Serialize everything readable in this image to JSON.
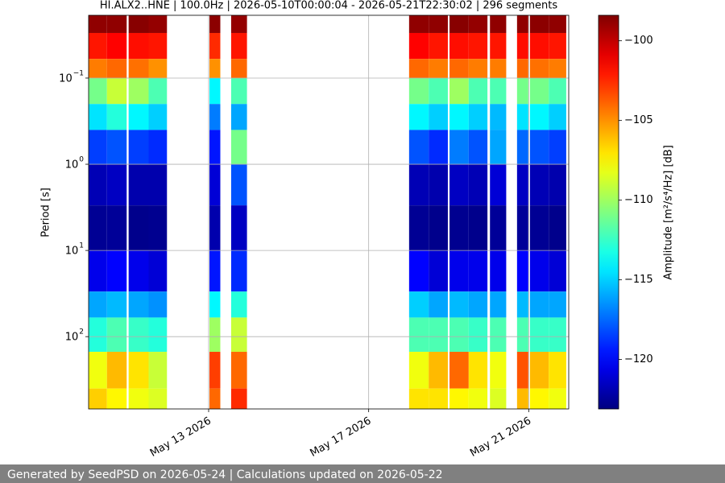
{
  "chart_data": {
    "type": "heatmap",
    "title": "HI.ALX2..HNE | 100.0Hz | 2026-05-10T00:00:04 - 2026-05-21T22:30:02 | 296 segments",
    "ylabel": "Period [s]",
    "colorbar_label": "Amplitude [m²/s⁴/Hz] [dB]",
    "xlim": [
      "2026-05-10",
      "2026-05-22"
    ],
    "xticks": [
      {
        "value": "2026-05-13",
        "label": "May 13 2026"
      },
      {
        "value": "2026-05-17",
        "label": "May 17 2026"
      },
      {
        "value": "2026-05-21",
        "label": "May 21 2026"
      }
    ],
    "ylim": [
      0.0187,
      690
    ],
    "y_scale": "log",
    "y_inverted": true,
    "yticks": [
      {
        "value": 0.1,
        "label": "10",
        "exponent": "−1"
      },
      {
        "value": 1,
        "label": "10",
        "exponent": "0"
      },
      {
        "value": 10,
        "label": "10",
        "exponent": "1"
      },
      {
        "value": 100,
        "label": "10",
        "exponent": "2"
      }
    ],
    "grid": true,
    "colormap": "jet",
    "clim": [
      -123.1,
      -98.4
    ],
    "cticks": [
      {
        "value": -100,
        "label": "−100"
      },
      {
        "value": -105,
        "label": "−105"
      },
      {
        "value": -110,
        "label": "−110"
      },
      {
        "value": -115,
        "label": "−115"
      },
      {
        "value": -120,
        "label": "−120"
      }
    ],
    "y_edges": [
      0.0187,
      0.03,
      0.06,
      0.1,
      0.2,
      0.4,
      1,
      3,
      10,
      30,
      60,
      150,
      400,
      690
    ],
    "segments": [
      {
        "start": "2026-05-10T00:00",
        "end": "2026-05-10T11:00",
        "values": [
          -98.8,
          -102,
          -104.5,
          -111,
          -114.5,
          -118.5,
          -121.8,
          -122.6,
          -120.5,
          -116,
          -113,
          -108,
          -106.5
        ]
      },
      {
        "start": "2026-05-10T11:00",
        "end": "2026-05-10T22:50",
        "values": [
          -98.8,
          -101.5,
          -104,
          -109,
          -113,
          -118,
          -121.5,
          -122.5,
          -120,
          -115.5,
          -112,
          -106,
          -107.5
        ]
      },
      {
        "start": "2026-05-11T00:00",
        "end": "2026-05-11T12:00",
        "values": [
          -98.6,
          -101.8,
          -104.2,
          -110,
          -114,
          -118.5,
          -122,
          -122.8,
          -120.5,
          -116,
          -112.5,
          -107,
          -108
        ]
      },
      {
        "start": "2026-05-11T12:00",
        "end": "2026-05-11T23:00",
        "values": [
          -98.9,
          -102,
          -105,
          -112,
          -115,
          -119,
          -122,
          -122.7,
          -121,
          -116.5,
          -113,
          -109,
          -108.5
        ]
      },
      {
        "start": "2026-05-13T00:30",
        "end": "2026-05-13T07:00",
        "values": [
          -98.7,
          -102.5,
          -105,
          -114,
          -117,
          -119.5,
          -121,
          -122,
          -119.5,
          -114,
          -110,
          -103,
          -104
        ]
      },
      {
        "start": "2026-05-13T13:30",
        "end": "2026-05-13T23:00",
        "values": [
          -98.9,
          -102,
          -104,
          -112,
          -116,
          -111,
          -118,
          -121.5,
          -119,
          -113,
          -109,
          -104,
          -102.5
        ]
      },
      {
        "start": "2026-05-18T00:15",
        "end": "2026-05-18T12:00",
        "values": [
          -98.8,
          -101.5,
          -104,
          -111,
          -114,
          -118,
          -121.8,
          -122.6,
          -120,
          -115,
          -112,
          -108,
          -107
        ]
      },
      {
        "start": "2026-05-18T12:00",
        "end": "2026-05-18T23:30",
        "values": [
          -98.8,
          -102,
          -104.5,
          -112,
          -115,
          -119,
          -122,
          -122.8,
          -121,
          -116,
          -112,
          -106,
          -107
        ]
      },
      {
        "start": "2026-05-19T00:30",
        "end": "2026-05-19T12:00",
        "values": [
          -98.6,
          -101.8,
          -104,
          -110,
          -114,
          -117,
          -121.5,
          -122.7,
          -120.5,
          -115.5,
          -112,
          -104,
          -107.5
        ]
      },
      {
        "start": "2026-05-19T12:00",
        "end": "2026-05-19T23:15",
        "values": [
          -98.9,
          -102,
          -104.5,
          -112,
          -115,
          -118,
          -121.8,
          -122.8,
          -120.5,
          -116,
          -112.5,
          -107,
          -108
        ]
      },
      {
        "start": "2026-05-20T00:45",
        "end": "2026-05-20T10:30",
        "values": [
          -98.8,
          -102,
          -104.5,
          -112,
          -115.5,
          -116,
          -121,
          -122.5,
          -120.5,
          -116,
          -112,
          -108,
          -108.5
        ]
      },
      {
        "start": "2026-05-20T17:00",
        "end": "2026-05-20T23:45",
        "values": [
          -98.8,
          -101.8,
          -104,
          -111,
          -114.5,
          -117.5,
          -121.5,
          -122.5,
          -120,
          -115.5,
          -112,
          -103.5,
          -106
        ]
      },
      {
        "start": "2026-05-21T00:45",
        "end": "2026-05-21T12:00",
        "values": [
          -98.7,
          -101.8,
          -104.2,
          -111,
          -114,
          -118,
          -121.8,
          -122.6,
          -120.5,
          -116,
          -112.5,
          -106,
          -107.5
        ]
      },
      {
        "start": "2026-05-21T12:00",
        "end": "2026-05-21T22:30",
        "values": [
          -98.8,
          -102,
          -104.5,
          -112,
          -115,
          -118.5,
          -122,
          -122.8,
          -121,
          -116,
          -112.5,
          -107,
          -108
        ]
      }
    ]
  },
  "footer": "Generated by SeedPSD on 2026-05-24 | Calculations updated on 2026-05-22"
}
